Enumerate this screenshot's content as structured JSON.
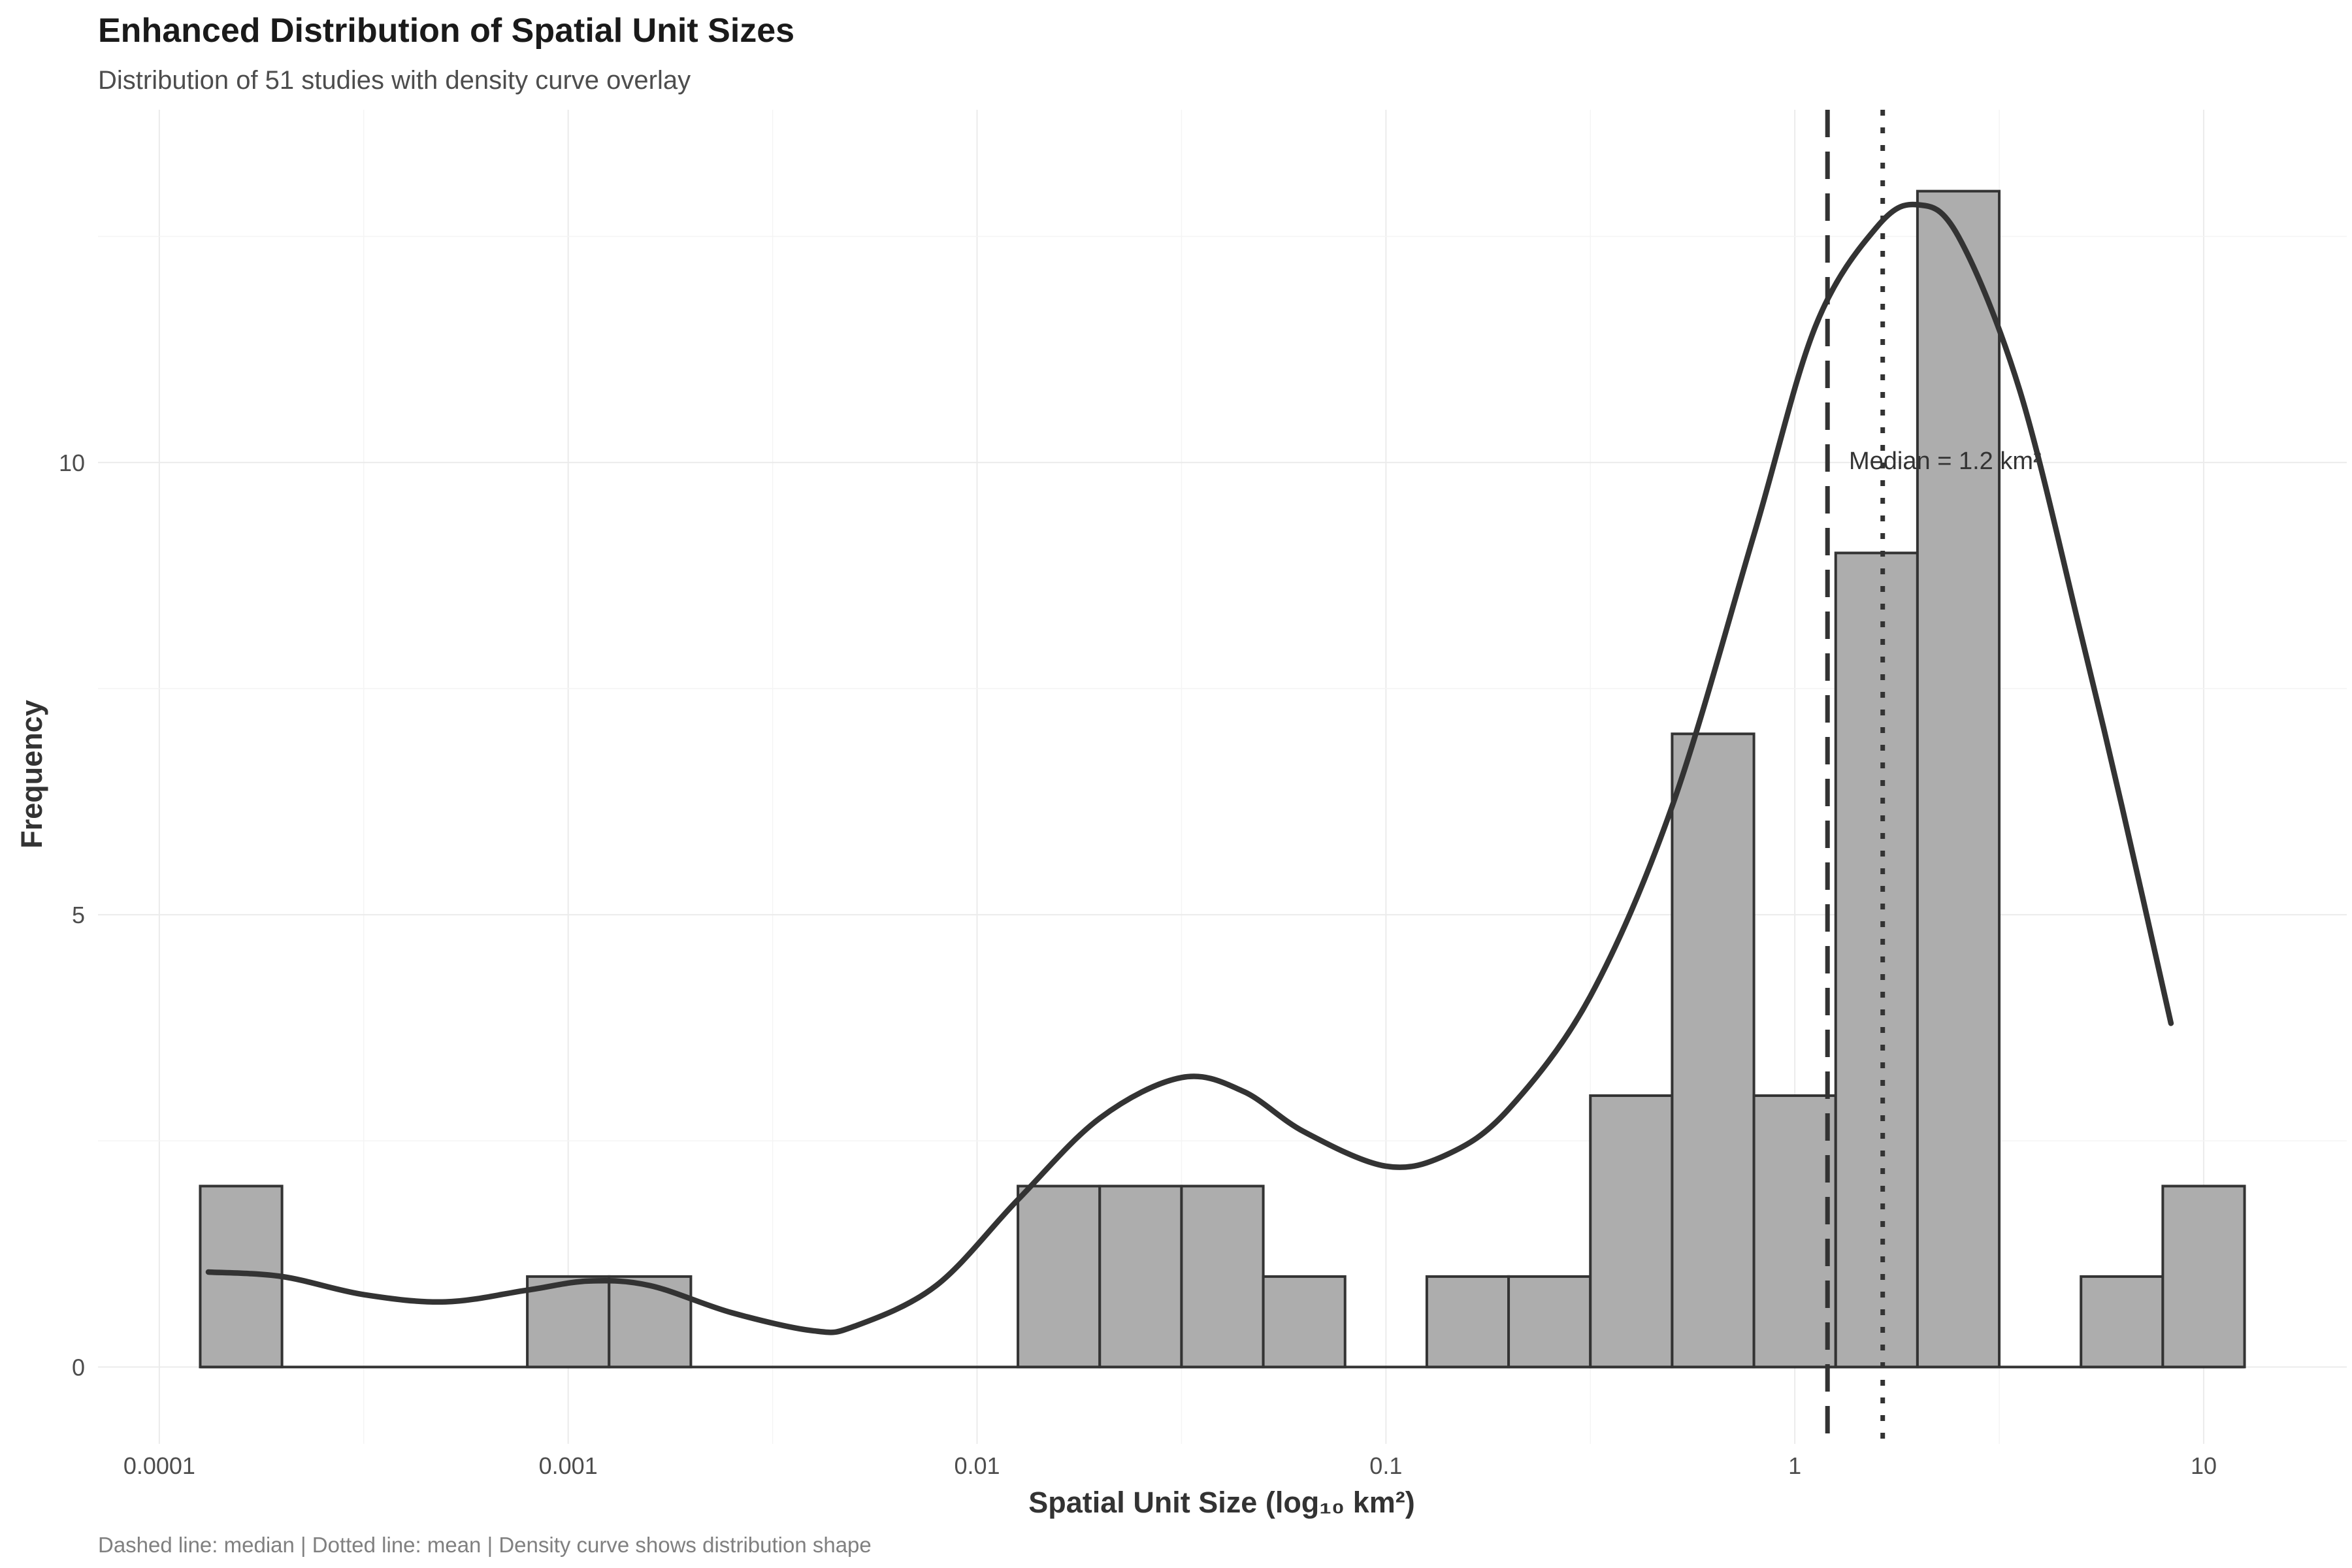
{
  "chart_data": {
    "type": "bar",
    "title": "Enhanced Distribution of Spatial Unit Sizes",
    "subtitle": "Distribution of 51 studies with density curve overlay",
    "xlabel": "Spatial Unit Size (log₁₀ km²)",
    "ylabel": "Frequency",
    "caption": "Dashed line: median | Dotted line: mean | Density curve shows distribution shape",
    "x_scale": "log10",
    "xlim_log10": [
      -4.15,
      1.35
    ],
    "ylim": [
      -0.85,
      13.9
    ],
    "x_ticks": [
      {
        "value": -4,
        "label": "0.0001"
      },
      {
        "value": -3,
        "label": "0.001"
      },
      {
        "value": -2,
        "label": "0.01"
      },
      {
        "value": -1,
        "label": "0.1"
      },
      {
        "value": 0,
        "label": "1"
      },
      {
        "value": 1,
        "label": "10"
      }
    ],
    "y_ticks": [
      {
        "value": 0,
        "label": "0"
      },
      {
        "value": 5,
        "label": "5"
      },
      {
        "value": 10,
        "label": "10"
      }
    ],
    "bins": [
      {
        "x0": -3.9,
        "x1": -3.7,
        "count": 2
      },
      {
        "x0": -3.1,
        "x1": -2.9,
        "count": 1
      },
      {
        "x0": -2.9,
        "x1": -2.7,
        "count": 1
      },
      {
        "x0": -1.9,
        "x1": -1.7,
        "count": 2
      },
      {
        "x0": -1.7,
        "x1": -1.5,
        "count": 2
      },
      {
        "x0": -1.5,
        "x1": -1.3,
        "count": 2
      },
      {
        "x0": -1.3,
        "x1": -1.1,
        "count": 1
      },
      {
        "x0": -0.9,
        "x1": -0.7,
        "count": 1
      },
      {
        "x0": -0.7,
        "x1": -0.5,
        "count": 1
      },
      {
        "x0": -0.5,
        "x1": -0.3,
        "count": 3
      },
      {
        "x0": -0.3,
        "x1": -0.1,
        "count": 7
      },
      {
        "x0": -0.1,
        "x1": 0.1,
        "count": 3
      },
      {
        "x0": 0.1,
        "x1": 0.3,
        "count": 9
      },
      {
        "x0": 0.3,
        "x1": 0.5,
        "count": 13
      },
      {
        "x0": 0.7,
        "x1": 0.9,
        "count": 1
      },
      {
        "x0": 0.9,
        "x1": 1.1,
        "count": 2
      }
    ],
    "density_curve": [
      [
        -3.88,
        1.05
      ],
      [
        -3.7,
        1.0
      ],
      [
        -3.5,
        0.8
      ],
      [
        -3.3,
        0.72
      ],
      [
        -3.1,
        0.85
      ],
      [
        -2.95,
        0.95
      ],
      [
        -2.8,
        0.9
      ],
      [
        -2.6,
        0.6
      ],
      [
        -2.4,
        0.4
      ],
      [
        -2.3,
        0.45
      ],
      [
        -2.1,
        0.9
      ],
      [
        -1.9,
        1.85
      ],
      [
        -1.7,
        2.75
      ],
      [
        -1.5,
        3.2
      ],
      [
        -1.35,
        3.05
      ],
      [
        -1.2,
        2.6
      ],
      [
        -1.0,
        2.22
      ],
      [
        -0.85,
        2.35
      ],
      [
        -0.7,
        2.85
      ],
      [
        -0.5,
        4.1
      ],
      [
        -0.3,
        6.2
      ],
      [
        -0.1,
        9.2
      ],
      [
        0.05,
        11.5
      ],
      [
        0.2,
        12.6
      ],
      [
        0.3,
        12.85
      ],
      [
        0.4,
        12.5
      ],
      [
        0.55,
        10.8
      ],
      [
        0.7,
        8.1
      ],
      [
        0.8,
        6.2
      ],
      [
        0.92,
        3.8
      ]
    ],
    "median_log10": 0.08,
    "mean_log10": 0.215,
    "median_label": "Median = 1.2 km²",
    "grid": true,
    "legend": "none"
  }
}
